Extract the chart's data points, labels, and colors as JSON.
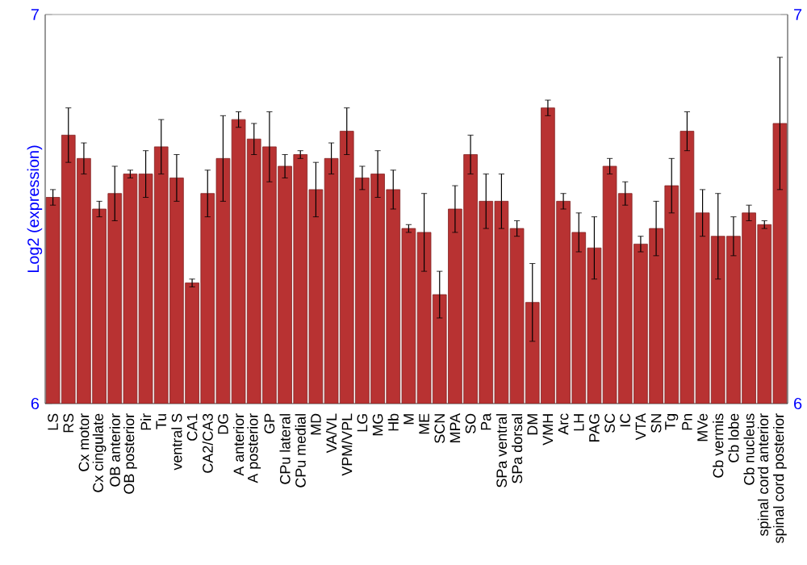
{
  "chart_data": {
    "type": "bar",
    "ylabel": "Log2 (expression)",
    "color": "#b83232",
    "categories": [
      "LS",
      "RS",
      "Cx motor",
      "Cx cingulate",
      "OB anterior",
      "OB posterior",
      "Pir",
      "Tu",
      "ventral S",
      "CA1",
      "CA2/CA3",
      "DG",
      "A anterior",
      "A posterior",
      "GP",
      "CPu lateral",
      "CPu medial",
      "MD",
      "VA/VL",
      "VPM/VPL",
      "LG",
      "MG",
      "Hb",
      "M",
      "ME",
      "SCN",
      "MPA",
      "SO",
      "Pa",
      "SPa ventral",
      "SPa dorsal",
      "DM",
      "VMH",
      "Arc",
      "LH",
      "PAG",
      "SC",
      "IC",
      "VTA",
      "SN",
      "Tg",
      "Pn",
      "MVe",
      "Cb vermis",
      "Cb lobe",
      "Cb nucleus",
      "spinal cord anterior",
      "spinal cord posterior"
    ],
    "values": [
      6.53,
      6.69,
      6.63,
      6.5,
      6.54,
      6.59,
      6.59,
      6.66,
      6.58,
      6.31,
      6.54,
      6.63,
      6.73,
      6.68,
      6.66,
      6.61,
      6.64,
      6.55,
      6.63,
      6.7,
      6.58,
      6.59,
      6.55,
      6.45,
      6.44,
      6.28,
      6.5,
      6.64,
      6.52,
      6.52,
      6.45,
      6.26,
      6.76,
      6.52,
      6.44,
      6.4,
      6.61,
      6.54,
      6.41,
      6.45,
      6.56,
      6.7,
      6.49,
      6.43,
      6.43,
      6.49,
      6.46,
      6.72
    ],
    "errors": [
      0.02,
      0.07,
      0.04,
      0.02,
      0.07,
      0.01,
      0.06,
      0.07,
      0.06,
      0.01,
      0.06,
      0.11,
      0.02,
      0.04,
      0.09,
      0.03,
      0.01,
      0.07,
      0.04,
      0.06,
      0.03,
      0.06,
      0.05,
      0.01,
      0.1,
      0.06,
      0.06,
      0.05,
      0.07,
      0.07,
      0.02,
      0.1,
      0.02,
      0.02,
      0.05,
      0.08,
      0.02,
      0.03,
      0.02,
      0.07,
      0.07,
      0.05,
      0.06,
      0.11,
      0.05,
      0.02,
      0.01,
      0.17
    ],
    "ylim": [
      6,
      7
    ],
    "yticks": [
      6,
      7
    ],
    "y2lim": [
      6,
      7
    ],
    "y2ticks": [
      6,
      7
    ]
  }
}
